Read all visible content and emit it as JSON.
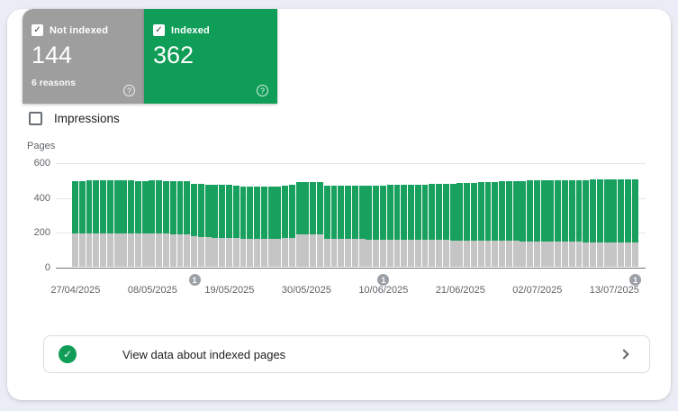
{
  "icons": {
    "check": "✓",
    "help": "?",
    "marker_label": "1"
  },
  "cards": {
    "not_indexed": {
      "label": "Not indexed",
      "value": "144",
      "sub": "6 reasons",
      "color": "#9e9e9e",
      "checked": true
    },
    "indexed": {
      "label": "Indexed",
      "value": "362",
      "color": "#0f9d58",
      "checked": true
    }
  },
  "impressions": {
    "label": "Impressions",
    "checked": false
  },
  "chart_data": {
    "type": "bar",
    "stacked": true,
    "ylabel": "Pages",
    "ylim": [
      0,
      600
    ],
    "yticks": [
      0,
      200,
      400,
      600
    ],
    "grid": true,
    "x_tick_labels": [
      "27/04/2025",
      "08/05/2025",
      "19/05/2025",
      "30/05/2025",
      "10/06/2025",
      "21/06/2025",
      "02/07/2025",
      "13/07/2025"
    ],
    "x_tick_indices": [
      0,
      11,
      22,
      33,
      44,
      55,
      66,
      77
    ],
    "series": [
      {
        "name": "Not indexed",
        "color": "#c5c5c5",
        "values": [
          195,
          194,
          195,
          196,
          195,
          194,
          195,
          195,
          194,
          193,
          194,
          195,
          194,
          193,
          192,
          191,
          191,
          178,
          174,
          172,
          171,
          170,
          170,
          167,
          166,
          165,
          165,
          164,
          164,
          163,
          168,
          170,
          188,
          189,
          188,
          187,
          166,
          165,
          164,
          163,
          162,
          161,
          160,
          160,
          159,
          160,
          159,
          159,
          158,
          158,
          157,
          157,
          156,
          156,
          155,
          155,
          154,
          154,
          153,
          153,
          152,
          152,
          151,
          151,
          150,
          150,
          149,
          148,
          148,
          147,
          147,
          146,
          146,
          145,
          145,
          144,
          144,
          144,
          144,
          144,
          144
        ]
      },
      {
        "name": "Indexed",
        "color": "#17a05e",
        "values": [
          302,
          303,
          304,
          303,
          305,
          306,
          305,
          304,
          305,
          304,
          303,
          304,
          305,
          304,
          303,
          304,
          303,
          304,
          305,
          304,
          303,
          304,
          303,
          302,
          301,
          302,
          300,
          301,
          300,
          301,
          303,
          305,
          303,
          302,
          303,
          302,
          303,
          304,
          305,
          306,
          307,
          308,
          309,
          310,
          311,
          313,
          314,
          316,
          317,
          319,
          320,
          322,
          324,
          326,
          328,
          330,
          332,
          334,
          336,
          338,
          340,
          342,
          344,
          346,
          347,
          349,
          350,
          352,
          353,
          354,
          355,
          356,
          357,
          358,
          359,
          360,
          361,
          362,
          362,
          362,
          362
        ]
      }
    ],
    "markers": [
      {
        "index": 17,
        "label": "1"
      },
      {
        "index": 44,
        "label": "1"
      },
      {
        "index": 80,
        "label": "1"
      }
    ]
  },
  "footer": {
    "text": "View data about indexed pages"
  }
}
